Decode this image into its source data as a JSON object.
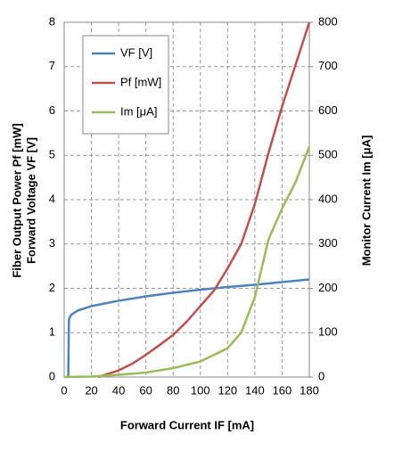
{
  "chart_data": {
    "type": "line",
    "xlabel": "Forward Current IF [mA]",
    "ylabel": [
      "Fiber Output Power Pf [mW]",
      "Forward Voltage VF [V]"
    ],
    "y2label": "Monitor Current Im [μA]",
    "xlim": [
      0,
      180
    ],
    "xticks": [
      0,
      20,
      40,
      60,
      80,
      100,
      120,
      140,
      160,
      180
    ],
    "ylim": [
      0,
      8
    ],
    "yticks": [
      0,
      1,
      2,
      3,
      4,
      5,
      6,
      7,
      8
    ],
    "y2lim": [
      0,
      800
    ],
    "y2ticks": [
      0,
      100,
      200,
      300,
      400,
      500,
      600,
      700,
      800
    ],
    "grid": true,
    "legend": "upper left",
    "series": [
      {
        "name": "VF [V]",
        "color": "#4f81bd",
        "x": [
          3,
          3.5,
          5,
          10,
          20,
          40,
          60,
          80,
          100,
          120,
          140,
          160,
          180
        ],
        "values": [
          0,
          1.3,
          1.4,
          1.5,
          1.6,
          1.72,
          1.82,
          1.9,
          1.97,
          2.03,
          2.08,
          2.14,
          2.2
        ]
      },
      {
        "name": "Pf [mW]",
        "color": "#c0504d",
        "x": [
          25,
          30,
          40,
          50,
          60,
          70,
          80,
          90,
          100,
          110,
          120,
          130,
          140,
          150,
          160,
          170,
          180
        ],
        "values": [
          0,
          0.05,
          0.15,
          0.3,
          0.5,
          0.72,
          0.95,
          1.25,
          1.6,
          1.95,
          2.45,
          3.0,
          3.9,
          5.05,
          6.1,
          7.05,
          8.0
        ]
      },
      {
        "name": "Im [μA]",
        "color": "#9bbb59",
        "axis": "y2",
        "x": [
          0,
          20,
          40,
          60,
          80,
          100,
          110,
          120,
          130,
          140,
          150,
          160,
          170,
          180
        ],
        "values": [
          0,
          1,
          5,
          10,
          20,
          35,
          50,
          65,
          100,
          180,
          310,
          380,
          440,
          520
        ]
      }
    ]
  }
}
